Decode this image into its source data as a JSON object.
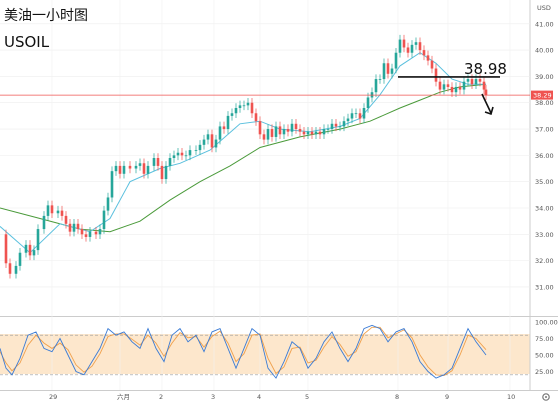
{
  "chart_data": {
    "type": "candlestick",
    "title": "美油一小时图",
    "subtitle": "USOIL",
    "currency_label": "USD",
    "y_ticks": [
      "41.00",
      "40.00",
      "39.00",
      "38.00",
      "37.00",
      "36.00",
      "35.00",
      "34.00",
      "33.00",
      "32.00",
      "31.00"
    ],
    "ylim": [
      30.2,
      41.6
    ],
    "x_ticks": [
      "29",
      "六月",
      "2",
      "3",
      "4",
      "5",
      "8",
      "9",
      "10"
    ],
    "current_price": "38.29",
    "current_price_value": 38.29,
    "annotation_level": "38.98",
    "annotation_value": 38.98,
    "colors": {
      "up": "#26a69a",
      "down": "#ef5350",
      "ma_fast": "#5bc0de",
      "ma_slow": "#4a9a3a",
      "price_line": "#ef5350",
      "stoch_band": "#fde7cc"
    },
    "price_path": [
      [
        0,
        33.0
      ],
      [
        6,
        31.9
      ],
      [
        10,
        31.5
      ],
      [
        16,
        31.8
      ],
      [
        20,
        32.3
      ],
      [
        26,
        32.6
      ],
      [
        30,
        32.2
      ],
      [
        34,
        32.4
      ],
      [
        38,
        33.2
      ],
      [
        44,
        33.7
      ],
      [
        48,
        34.1
      ],
      [
        52,
        33.8
      ],
      [
        58,
        33.9
      ],
      [
        62,
        33.7
      ],
      [
        66,
        33.4
      ],
      [
        70,
        33.1
      ],
      [
        74,
        33.4
      ],
      [
        78,
        33.2
      ],
      [
        82,
        33.0
      ],
      [
        86,
        32.9
      ],
      [
        90,
        33.1
      ],
      [
        96,
        33.0
      ],
      [
        100,
        33.2
      ],
      [
        104,
        33.9
      ],
      [
        108,
        34.4
      ],
      [
        112,
        35.4
      ],
      [
        116,
        35.6
      ],
      [
        120,
        35.3
      ],
      [
        124,
        35.6
      ],
      [
        130,
        35.5
      ],
      [
        136,
        35.6
      ],
      [
        140,
        35.7
      ],
      [
        144,
        35.3
      ],
      [
        148,
        35.6
      ],
      [
        154,
        35.9
      ],
      [
        158,
        35.6
      ],
      [
        162,
        35.1
      ],
      [
        166,
        35.6
      ],
      [
        170,
        35.9
      ],
      [
        174,
        36.0
      ],
      [
        178,
        36.1
      ],
      [
        182,
        36.0
      ],
      [
        186,
        36.0
      ],
      [
        190,
        36.2
      ],
      [
        196,
        36.2
      ],
      [
        200,
        36.4
      ],
      [
        204,
        36.6
      ],
      [
        208,
        36.8
      ],
      [
        212,
        36.3
      ],
      [
        216,
        36.6
      ],
      [
        220,
        37.1
      ],
      [
        224,
        37.0
      ],
      [
        228,
        37.5
      ],
      [
        232,
        37.6
      ],
      [
        236,
        37.8
      ],
      [
        240,
        37.9
      ],
      [
        244,
        37.9
      ],
      [
        248,
        38.0
      ],
      [
        252,
        37.6
      ],
      [
        256,
        37.3
      ],
      [
        260,
        36.8
      ],
      [
        264,
        36.6
      ],
      [
        268,
        37.0
      ],
      [
        272,
        36.7
      ],
      [
        276,
        37.1
      ],
      [
        280,
        36.8
      ],
      [
        284,
        37.0
      ],
      [
        288,
        36.9
      ],
      [
        292,
        37.2
      ],
      [
        296,
        37.0
      ],
      [
        300,
        36.9
      ],
      [
        304,
        36.8
      ],
      [
        308,
        36.9
      ],
      [
        312,
        36.8
      ],
      [
        316,
        36.9
      ],
      [
        320,
        36.8
      ],
      [
        324,
        37.0
      ],
      [
        328,
        37.0
      ],
      [
        332,
        37.2
      ],
      [
        336,
        37.1
      ],
      [
        340,
        37.1
      ],
      [
        344,
        37.3
      ],
      [
        348,
        37.4
      ],
      [
        352,
        37.6
      ],
      [
        356,
        37.6
      ],
      [
        360,
        37.4
      ],
      [
        364,
        37.8
      ],
      [
        368,
        38.2
      ],
      [
        372,
        38.4
      ],
      [
        376,
        38.9
      ],
      [
        380,
        38.9
      ],
      [
        384,
        39.5
      ],
      [
        388,
        39.1
      ],
      [
        392,
        39.3
      ],
      [
        396,
        39.9
      ],
      [
        400,
        40.4
      ],
      [
        404,
        40.1
      ],
      [
        408,
        39.9
      ],
      [
        412,
        40.2
      ],
      [
        416,
        40.3
      ],
      [
        420,
        40.0
      ],
      [
        424,
        39.8
      ],
      [
        428,
        39.6
      ],
      [
        432,
        39.3
      ],
      [
        436,
        38.8
      ],
      [
        440,
        38.5
      ],
      [
        444,
        38.7
      ],
      [
        448,
        38.6
      ],
      [
        452,
        38.4
      ],
      [
        456,
        38.6
      ],
      [
        460,
        38.5
      ],
      [
        464,
        38.8
      ],
      [
        468,
        38.9
      ],
      [
        472,
        38.7
      ],
      [
        476,
        38.9
      ],
      [
        480,
        38.8
      ],
      [
        484,
        38.5
      ],
      [
        486,
        38.29
      ]
    ],
    "ma_fast": [
      [
        0,
        33.3
      ],
      [
        30,
        32.3
      ],
      [
        60,
        33.4
      ],
      [
        90,
        33.1
      ],
      [
        110,
        33.6
      ],
      [
        130,
        35.0
      ],
      [
        160,
        35.5
      ],
      [
        180,
        35.7
      ],
      [
        210,
        36.2
      ],
      [
        240,
        37.2
      ],
      [
        260,
        37.3
      ],
      [
        280,
        37.0
      ],
      [
        310,
        36.9
      ],
      [
        340,
        37.1
      ],
      [
        360,
        37.4
      ],
      [
        380,
        38.3
      ],
      [
        400,
        39.4
      ],
      [
        420,
        39.9
      ],
      [
        436,
        39.5
      ],
      [
        452,
        38.9
      ],
      [
        468,
        38.7
      ],
      [
        486,
        38.7
      ]
    ],
    "ma_slow": [
      [
        0,
        34.0
      ],
      [
        40,
        33.6
      ],
      [
        80,
        33.2
      ],
      [
        110,
        33.1
      ],
      [
        140,
        33.5
      ],
      [
        170,
        34.3
      ],
      [
        200,
        35.0
      ],
      [
        230,
        35.6
      ],
      [
        260,
        36.3
      ],
      [
        300,
        36.7
      ],
      [
        340,
        37.0
      ],
      [
        370,
        37.3
      ],
      [
        400,
        37.8
      ],
      [
        420,
        38.1
      ],
      [
        440,
        38.4
      ],
      [
        460,
        38.6
      ],
      [
        486,
        38.7
      ]
    ],
    "stochastic": {
      "y_ticks": [
        "100.00",
        "75.00",
        "50.00",
        "25.00"
      ],
      "band": [
        20,
        80
      ],
      "k": [
        [
          0,
          60
        ],
        [
          6,
          30
        ],
        [
          12,
          20
        ],
        [
          20,
          45
        ],
        [
          28,
          80
        ],
        [
          36,
          85
        ],
        [
          44,
          60
        ],
        [
          52,
          55
        ],
        [
          60,
          75
        ],
        [
          68,
          50
        ],
        [
          76,
          25
        ],
        [
          84,
          20
        ],
        [
          92,
          40
        ],
        [
          100,
          60
        ],
        [
          108,
          90
        ],
        [
          116,
          80
        ],
        [
          124,
          85
        ],
        [
          132,
          70
        ],
        [
          140,
          60
        ],
        [
          148,
          90
        ],
        [
          156,
          60
        ],
        [
          164,
          40
        ],
        [
          172,
          80
        ],
        [
          180,
          90
        ],
        [
          188,
          70
        ],
        [
          196,
          80
        ],
        [
          204,
          55
        ],
        [
          212,
          85
        ],
        [
          220,
          90
        ],
        [
          228,
          60
        ],
        [
          236,
          30
        ],
        [
          244,
          60
        ],
        [
          252,
          90
        ],
        [
          260,
          80
        ],
        [
          268,
          30
        ],
        [
          276,
          15
        ],
        [
          284,
          40
        ],
        [
          292,
          70
        ],
        [
          300,
          60
        ],
        [
          308,
          30
        ],
        [
          316,
          45
        ],
        [
          324,
          70
        ],
        [
          332,
          85
        ],
        [
          340,
          60
        ],
        [
          348,
          40
        ],
        [
          356,
          60
        ],
        [
          364,
          90
        ],
        [
          372,
          95
        ],
        [
          380,
          90
        ],
        [
          388,
          70
        ],
        [
          396,
          85
        ],
        [
          404,
          90
        ],
        [
          412,
          70
        ],
        [
          420,
          40
        ],
        [
          428,
          25
        ],
        [
          436,
          15
        ],
        [
          444,
          20
        ],
        [
          452,
          30
        ],
        [
          460,
          60
        ],
        [
          468,
          90
        ],
        [
          476,
          70
        ],
        [
          486,
          50
        ]
      ],
      "d": [
        [
          0,
          55
        ],
        [
          6,
          38
        ],
        [
          12,
          26
        ],
        [
          20,
          38
        ],
        [
          28,
          65
        ],
        [
          36,
          80
        ],
        [
          44,
          68
        ],
        [
          52,
          60
        ],
        [
          60,
          68
        ],
        [
          68,
          58
        ],
        [
          76,
          35
        ],
        [
          84,
          24
        ],
        [
          92,
          33
        ],
        [
          100,
          52
        ],
        [
          108,
          78
        ],
        [
          116,
          82
        ],
        [
          124,
          82
        ],
        [
          132,
          74
        ],
        [
          140,
          65
        ],
        [
          148,
          80
        ],
        [
          156,
          68
        ],
        [
          164,
          48
        ],
        [
          172,
          68
        ],
        [
          180,
          84
        ],
        [
          188,
          76
        ],
        [
          196,
          78
        ],
        [
          204,
          62
        ],
        [
          212,
          78
        ],
        [
          220,
          86
        ],
        [
          228,
          68
        ],
        [
          236,
          40
        ],
        [
          244,
          52
        ],
        [
          252,
          80
        ],
        [
          260,
          82
        ],
        [
          268,
          45
        ],
        [
          276,
          22
        ],
        [
          284,
          32
        ],
        [
          292,
          60
        ],
        [
          300,
          62
        ],
        [
          308,
          38
        ],
        [
          316,
          42
        ],
        [
          324,
          62
        ],
        [
          332,
          78
        ],
        [
          340,
          66
        ],
        [
          348,
          48
        ],
        [
          356,
          55
        ],
        [
          364,
          82
        ],
        [
          372,
          92
        ],
        [
          380,
          92
        ],
        [
          388,
          76
        ],
        [
          396,
          82
        ],
        [
          404,
          88
        ],
        [
          412,
          76
        ],
        [
          420,
          50
        ],
        [
          428,
          32
        ],
        [
          436,
          20
        ],
        [
          444,
          19
        ],
        [
          452,
          26
        ],
        [
          460,
          50
        ],
        [
          468,
          80
        ],
        [
          476,
          75
        ],
        [
          486,
          58
        ]
      ]
    }
  }
}
